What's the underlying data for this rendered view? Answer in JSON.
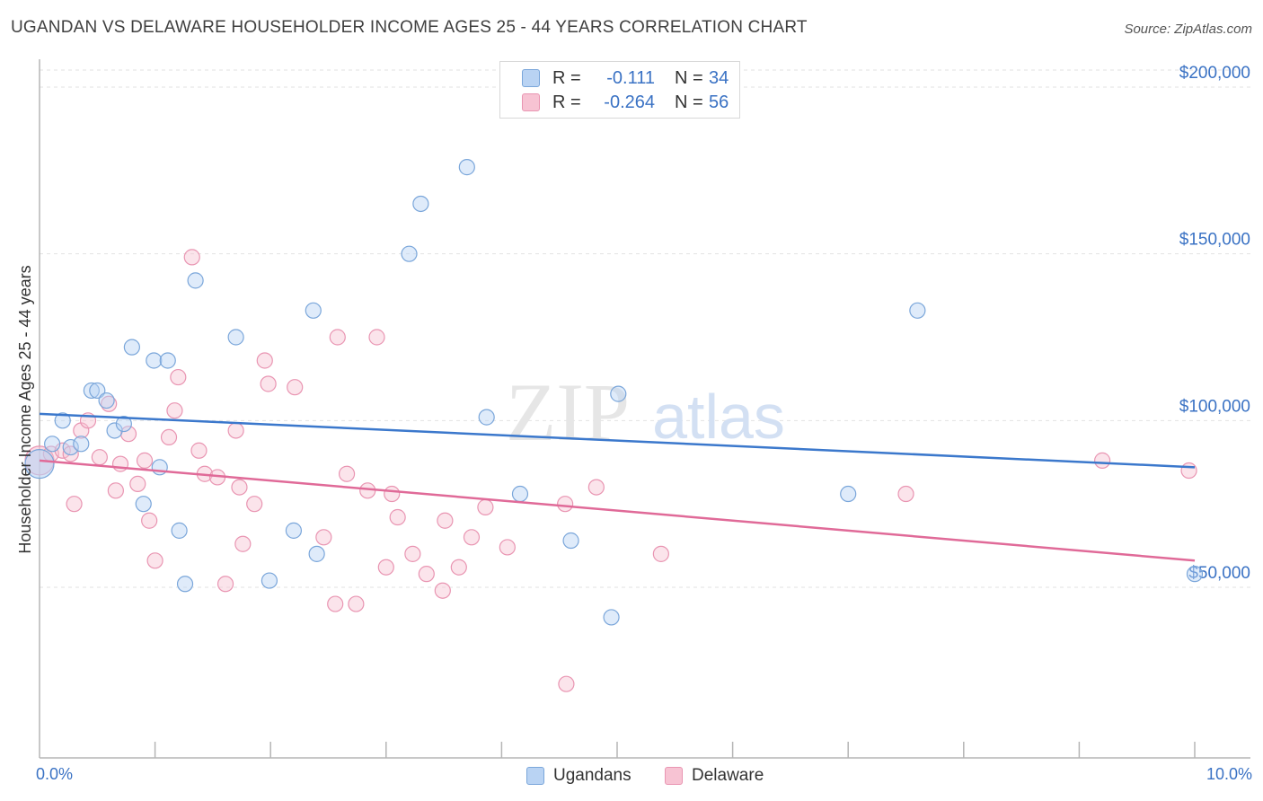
{
  "title": "UGANDAN VS DELAWARE HOUSEHOLDER INCOME AGES 25 - 44 YEARS CORRELATION CHART",
  "source": "Source: ZipAtlas.com",
  "watermark": {
    "zip": "ZIP",
    "atlas": "atlas"
  },
  "legend": {
    "rows": [
      {
        "r_label": "R =",
        "r_value": "-0.111",
        "n_label": "N =",
        "n_value": "34"
      },
      {
        "r_label": "R =",
        "r_value": "-0.264",
        "n_label": "N =",
        "n_value": "56"
      }
    ]
  },
  "bottom_legend": {
    "ugandans": "Ugandans",
    "delaware": "Delaware"
  },
  "colors": {
    "blue_fill": "#b9d3f3",
    "blue_stroke": "#7aa6da",
    "blue_line": "#3b78cc",
    "pink_fill": "#f7c3d3",
    "pink_stroke": "#e995b2",
    "pink_line": "#e06a98",
    "axis_label": "#3a72c4"
  },
  "chart_data": {
    "type": "scatter",
    "title": "UGANDAN VS DELAWARE HOUSEHOLDER INCOME AGES 25 - 44 YEARS CORRELATION CHART",
    "xlabel": "",
    "ylabel": "Householder Income Ages 25 - 44 years",
    "xlim": [
      0,
      10
    ],
    "ylim": [
      0,
      210000
    ],
    "x_tick_labels": [
      "0.0%",
      "10.0%"
    ],
    "y_ticks": [
      50000,
      100000,
      150000,
      200000
    ],
    "y_tick_labels": [
      "$50,000",
      "$100,000",
      "$150,000",
      "$200,000"
    ],
    "grid": "horizontal dashed",
    "series": [
      {
        "name": "Ugandans",
        "points": [
          [
            0.0,
            87000
          ],
          [
            0.11,
            93000
          ],
          [
            0.2,
            100000
          ],
          [
            0.27,
            92000
          ],
          [
            0.36,
            93000
          ],
          [
            0.45,
            109000
          ],
          [
            0.5,
            109000
          ],
          [
            0.58,
            106000
          ],
          [
            0.65,
            97000
          ],
          [
            0.73,
            99000
          ],
          [
            0.8,
            122000
          ],
          [
            0.9,
            75000
          ],
          [
            0.99,
            118000
          ],
          [
            1.04,
            86000
          ],
          [
            1.11,
            118000
          ],
          [
            1.21,
            67000
          ],
          [
            1.26,
            51000
          ],
          [
            1.35,
            142000
          ],
          [
            1.7,
            125000
          ],
          [
            1.99,
            52000
          ],
          [
            2.2,
            67000
          ],
          [
            2.37,
            133000
          ],
          [
            2.4,
            60000
          ],
          [
            3.2,
            150000
          ],
          [
            3.3,
            165000
          ],
          [
            3.7,
            176000
          ],
          [
            3.87,
            101000
          ],
          [
            4.16,
            78000
          ],
          [
            4.6,
            64000
          ],
          [
            4.95,
            41000
          ],
          [
            5.01,
            108000
          ],
          [
            7.0,
            78000
          ],
          [
            7.6,
            133000
          ],
          [
            10.0,
            54000
          ]
        ],
        "trend": {
          "x": [
            0,
            10
          ],
          "y": [
            102000,
            86000
          ]
        }
      },
      {
        "name": "Delaware",
        "points": [
          [
            0.0,
            88000
          ],
          [
            0.1,
            90000
          ],
          [
            0.2,
            91000
          ],
          [
            0.27,
            90000
          ],
          [
            0.3,
            75000
          ],
          [
            0.36,
            97000
          ],
          [
            0.42,
            100000
          ],
          [
            0.52,
            89000
          ],
          [
            0.6,
            105000
          ],
          [
            0.66,
            79000
          ],
          [
            0.7,
            87000
          ],
          [
            0.77,
            96000
          ],
          [
            0.85,
            81000
          ],
          [
            0.91,
            88000
          ],
          [
            0.95,
            70000
          ],
          [
            1.0,
            58000
          ],
          [
            1.12,
            95000
          ],
          [
            1.17,
            103000
          ],
          [
            1.2,
            113000
          ],
          [
            1.32,
            149000
          ],
          [
            1.38,
            91000
          ],
          [
            1.43,
            84000
          ],
          [
            1.54,
            83000
          ],
          [
            1.61,
            51000
          ],
          [
            1.7,
            97000
          ],
          [
            1.73,
            80000
          ],
          [
            1.76,
            63000
          ],
          [
            1.86,
            75000
          ],
          [
            1.95,
            118000
          ],
          [
            1.98,
            111000
          ],
          [
            2.21,
            110000
          ],
          [
            2.46,
            65000
          ],
          [
            2.56,
            45000
          ],
          [
            2.58,
            125000
          ],
          [
            2.66,
            84000
          ],
          [
            2.74,
            45000
          ],
          [
            2.84,
            79000
          ],
          [
            2.92,
            125000
          ],
          [
            3.0,
            56000
          ],
          [
            3.05,
            78000
          ],
          [
            3.1,
            71000
          ],
          [
            3.23,
            60000
          ],
          [
            3.35,
            54000
          ],
          [
            3.49,
            49000
          ],
          [
            3.51,
            70000
          ],
          [
            3.63,
            56000
          ],
          [
            3.74,
            65000
          ],
          [
            3.86,
            74000
          ],
          [
            4.05,
            62000
          ],
          [
            4.55,
            75000
          ],
          [
            4.56,
            21000
          ],
          [
            4.82,
            80000
          ],
          [
            5.38,
            60000
          ],
          [
            7.5,
            78000
          ],
          [
            9.2,
            88000
          ],
          [
            9.95,
            85000
          ]
        ],
        "trend": {
          "x": [
            0,
            10
          ],
          "y": [
            88000,
            58000
          ]
        }
      }
    ]
  }
}
